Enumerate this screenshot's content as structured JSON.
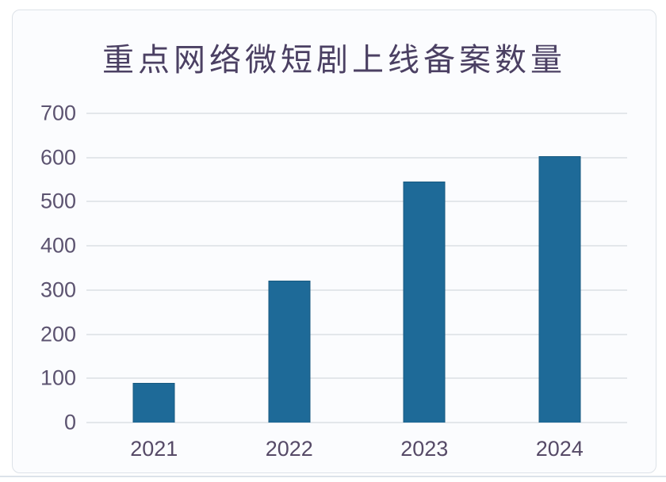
{
  "chart_data": {
    "type": "bar",
    "title": "重点网络微短剧上线备案数量",
    "categories": [
      "2021",
      "2022",
      "2023",
      "2024"
    ],
    "values": [
      90,
      322,
      545,
      604
    ],
    "xlabel": "",
    "ylabel": "",
    "ylim": [
      0,
      700
    ],
    "yticks": [
      0,
      100,
      200,
      300,
      400,
      500,
      600,
      700
    ],
    "grid": "horizontal",
    "legend": "none",
    "colors": {
      "bar": "#1e6a98",
      "title_text": "#4b4063",
      "y_axis_text": "#5c5370",
      "x_axis_text": "#564a67",
      "gridline": "#e3e7eb",
      "panel_border": "#dde2e8",
      "panel_background": "#fbfcfe"
    }
  }
}
